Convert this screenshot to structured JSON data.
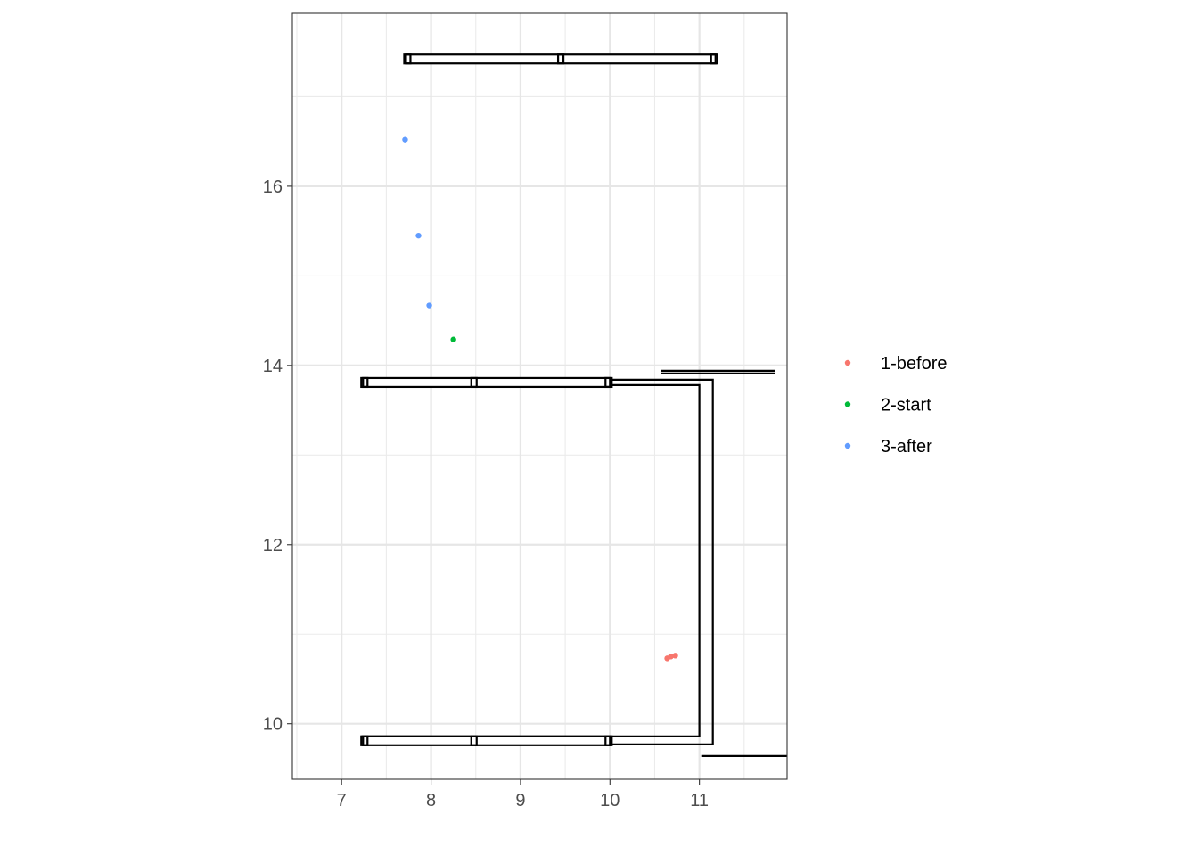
{
  "chart_data": {
    "type": "scatter",
    "title": "",
    "xlabel": "",
    "ylabel": "",
    "xlim": [
      6.45,
      11.98
    ],
    "ylim": [
      9.38,
      17.93
    ],
    "x_ticks": [
      7,
      8,
      9,
      10,
      11
    ],
    "x_tick_labels": [
      "7",
      "8",
      "9",
      "10",
      "11"
    ],
    "y_ticks": [
      10,
      12,
      14,
      16
    ],
    "y_tick_labels": [
      "10",
      "12",
      "14",
      "16"
    ],
    "grid": true,
    "legend_position": "right",
    "series": [
      {
        "name": "1-before",
        "color": "#F8766D",
        "points": [
          [
            10.64,
            10.73
          ],
          [
            10.68,
            10.75
          ],
          [
            10.73,
            10.76
          ]
        ]
      },
      {
        "name": "2-start",
        "color": "#00BA38",
        "points": [
          [
            8.25,
            14.29
          ]
        ]
      },
      {
        "name": "3-after",
        "color": "#619CFF",
        "points": [
          [
            7.98,
            14.67
          ],
          [
            7.86,
            15.45
          ],
          [
            7.71,
            16.52
          ]
        ]
      }
    ],
    "outline": {
      "color": "#000000",
      "paths": [
        [
          [
            7.22,
            13.84
          ],
          [
            10.02,
            13.84
          ]
        ],
        [
          [
            7.22,
            13.78
          ],
          [
            11.0,
            13.78
          ],
          [
            11.0,
            9.86
          ],
          [
            7.22,
            9.86
          ]
        ],
        [
          [
            7.22,
            9.8
          ],
          [
            10.02,
            9.8
          ]
        ],
        [
          [
            10.02,
            13.84
          ],
          [
            11.15,
            13.84
          ],
          [
            11.15,
            9.77
          ],
          [
            10.02,
            9.77
          ]
        ],
        [
          [
            10.57,
            13.91
          ],
          [
            11.85,
            13.91
          ]
        ],
        [
          [
            10.57,
            13.94
          ],
          [
            11.85,
            13.94
          ]
        ],
        [
          [
            11.02,
            9.64
          ],
          [
            11.98,
            9.64
          ]
        ]
      ],
      "bars": [
        {
          "x": [
            7.7,
            11.2
          ],
          "y": 17.42,
          "joints": [
            9.45
          ]
        },
        {
          "x": [
            7.22,
            10.02
          ],
          "y": 13.81,
          "joints": [
            8.48
          ]
        },
        {
          "x": [
            7.22,
            10.02
          ],
          "y": 9.81,
          "joints": [
            8.48
          ]
        }
      ]
    }
  }
}
